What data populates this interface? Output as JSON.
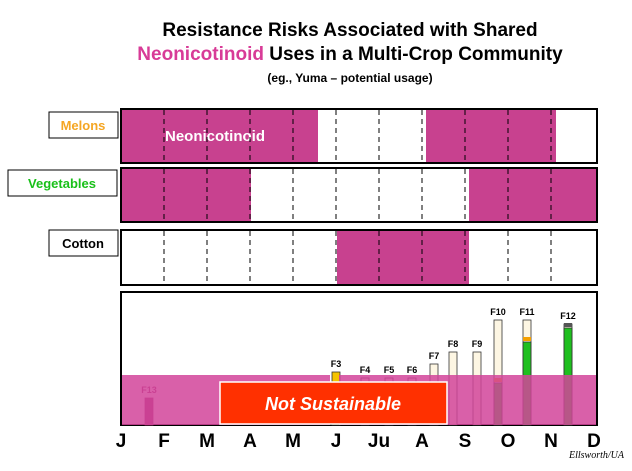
{
  "title": {
    "line1": "Resistance Risks Associated with Shared",
    "highlight": "Neonicotinoid",
    "line2_rest": " Uses in a Multi-Crop Community",
    "subtitle": "(eg., Yuma – potential usage)"
  },
  "rows": [
    {
      "label": "Melons",
      "annotation": "Neonicotinoid"
    },
    {
      "label": "Vegetables"
    },
    {
      "label": "Cotton"
    }
  ],
  "generations": [
    "F13",
    "F3",
    "F4",
    "F5",
    "F6",
    "F7",
    "F8",
    "F9",
    "F10",
    "F11",
    "F12"
  ],
  "banner": "Not Sustainable",
  "months": [
    "J",
    "F",
    "M",
    "A",
    "M",
    "J",
    "Ju",
    "A",
    "S",
    "O",
    "N",
    "D"
  ],
  "credit": "Ellsworth/UA"
}
